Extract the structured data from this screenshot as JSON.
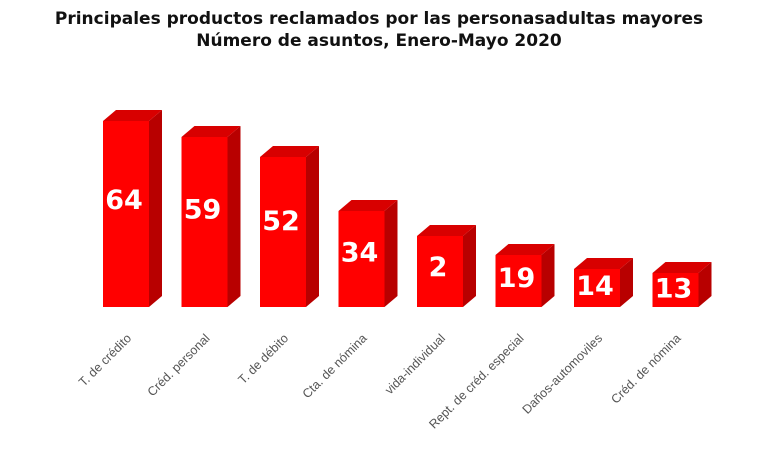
{
  "chart_data": {
    "type": "bar",
    "title": "Principales productos reclamados por las personasadultas mayores",
    "subtitle": "Número de asuntos, Enero-Mayo 2020",
    "xlabel": "",
    "ylabel": "",
    "categories": [
      "T. de crédito",
      "Créd. personal",
      "T. de débito",
      "Cta. de nómina",
      "vida-individual",
      "Rept. de créd. especial",
      "Daños-automoviles",
      "Créd. de nómina"
    ],
    "values": [
      64,
      59,
      52,
      34,
      2,
      19,
      14,
      13
    ],
    "data_labels": [
      "64",
      "59",
      "52",
      "34",
      "2",
      "19",
      "14",
      "13"
    ],
    "grid": false,
    "legend": "none",
    "colors": {
      "front": "#ff0000",
      "side": "#b80000",
      "top": "#d80000"
    }
  }
}
